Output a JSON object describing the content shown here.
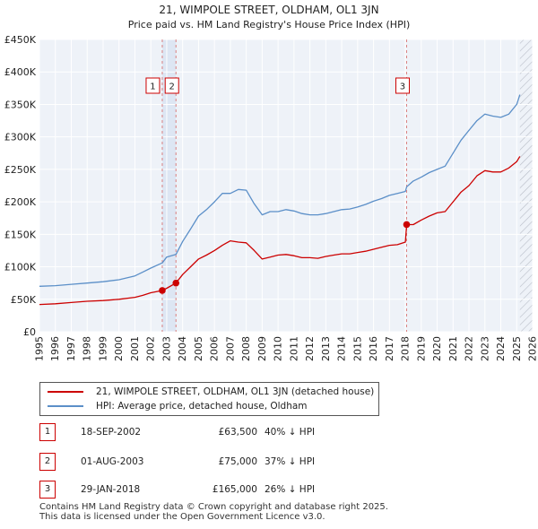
{
  "chart_data": {
    "type": "line",
    "title": "21, WIMPOLE STREET, OLDHAM, OL1 3JN",
    "subtitle": "Price paid vs. HM Land Registry's House Price Index (HPI)",
    "xlim": [
      1995,
      2026
    ],
    "ylim": [
      0,
      450000
    ],
    "x_ticks": [
      1995,
      1996,
      1997,
      1998,
      1999,
      2000,
      2001,
      2002,
      2003,
      2004,
      2005,
      2006,
      2007,
      2008,
      2009,
      2010,
      2011,
      2012,
      2013,
      2014,
      2015,
      2016,
      2017,
      2018,
      2019,
      2020,
      2021,
      2022,
      2023,
      2024,
      2025,
      2026
    ],
    "y_ticks": [
      {
        "value": 0,
        "label": "£0"
      },
      {
        "value": 50000,
        "label": "£50K"
      },
      {
        "value": 100000,
        "label": "£100K"
      },
      {
        "value": 150000,
        "label": "£150K"
      },
      {
        "value": 200000,
        "label": "£200K"
      },
      {
        "value": 250000,
        "label": "£250K"
      },
      {
        "value": 300000,
        "label": "£300K"
      },
      {
        "value": 350000,
        "label": "£350K"
      },
      {
        "value": 400000,
        "label": "£400K"
      },
      {
        "value": 450000,
        "label": "£450K"
      }
    ],
    "grid": true,
    "series": [
      {
        "name": "21, WIMPOLE STREET, OLDHAM, OL1 3JN (detached house)",
        "color": "#cc0000",
        "x": [
          1995,
          1996,
          1997,
          1998,
          1999,
          2000,
          2001,
          2001.5,
          2002,
          2002.72,
          2003,
          2003.58,
          2004,
          2004.5,
          2005,
          2005.5,
          2006,
          2006.5,
          2007,
          2007.5,
          2008,
          2008.5,
          2009,
          2009.5,
          2010,
          2010.5,
          2011,
          2011.5,
          2012,
          2012.5,
          2013,
          2013.5,
          2014,
          2014.5,
          2015,
          2015.5,
          2016,
          2016.5,
          2017,
          2017.5,
          2018.0,
          2018.08,
          2018.5,
          2019,
          2019.5,
          2020,
          2020.5,
          2021,
          2021.5,
          2022,
          2022.5,
          2023,
          2023.5,
          2024,
          2024.5,
          2025,
          2025.2
        ],
        "values": [
          42000,
          43000,
          45000,
          47000,
          48000,
          50000,
          53000,
          56000,
          60000,
          63500,
          67000,
          75000,
          88000,
          100000,
          112000,
          118000,
          125000,
          133000,
          140000,
          138000,
          137000,
          125000,
          112000,
          115000,
          118000,
          119000,
          117000,
          114000,
          114000,
          113000,
          116000,
          118000,
          120000,
          120000,
          122000,
          124000,
          127000,
          130000,
          133000,
          134000,
          138000,
          165000,
          165000,
          172000,
          178000,
          183000,
          185000,
          200000,
          215000,
          225000,
          240000,
          248000,
          246000,
          246000,
          252000,
          262000,
          270000
        ]
      },
      {
        "name": "HPI: Average price, detached house, Oldham",
        "color": "#5b8fc8",
        "x": [
          1995,
          1996,
          1997,
          1998,
          1999,
          2000,
          2001,
          2001.5,
          2002,
          2002.72,
          2003,
          2003.58,
          2004,
          2004.5,
          2005,
          2005.5,
          2006,
          2006.5,
          2007,
          2007.5,
          2008,
          2008.5,
          2009,
          2009.5,
          2010,
          2010.5,
          2011,
          2011.5,
          2012,
          2012.5,
          2013,
          2013.5,
          2014,
          2014.5,
          2015,
          2015.5,
          2016,
          2016.5,
          2017,
          2017.5,
          2018.0,
          2018.08,
          2018.5,
          2019,
          2019.5,
          2020,
          2020.5,
          2021,
          2021.5,
          2022,
          2022.5,
          2023,
          2023.5,
          2024,
          2024.5,
          2025,
          2025.2
        ],
        "values": [
          70000,
          71000,
          73000,
          75000,
          77000,
          80000,
          86000,
          92000,
          98000,
          106000,
          115000,
          119000,
          139000,
          158000,
          178000,
          188000,
          200000,
          213000,
          213000,
          219000,
          218000,
          197000,
          180000,
          185000,
          185000,
          188000,
          186000,
          182000,
          180000,
          180000,
          182000,
          185000,
          188000,
          189000,
          192000,
          196000,
          201000,
          205000,
          210000,
          213000,
          216000,
          223000,
          232000,
          238000,
          245000,
          250000,
          255000,
          275000,
          295000,
          310000,
          325000,
          335000,
          332000,
          330000,
          335000,
          350000,
          365000
        ]
      }
    ],
    "sales": [
      {
        "label": "1",
        "x": 2002.72,
        "value": 63500
      },
      {
        "label": "2",
        "x": 2003.58,
        "value": 75000
      },
      {
        "label": "3",
        "x": 2018.08,
        "value": 165000
      }
    ],
    "hpi_color": "#5b8fc8",
    "price_color": "#cc0000"
  },
  "legend": {
    "items": [
      {
        "label": "21, WIMPOLE STREET, OLDHAM, OL1 3JN (detached house)",
        "color": "#cc0000"
      },
      {
        "label": "HPI: Average price, detached house, Oldham",
        "color": "#5b8fc8"
      }
    ]
  },
  "table": {
    "rows": [
      {
        "num": "1",
        "date": "18-SEP-2002",
        "price": "£63,500",
        "hpi": "40% ↓ HPI"
      },
      {
        "num": "2",
        "date": "01-AUG-2003",
        "price": "£75,000",
        "hpi": "37% ↓ HPI"
      },
      {
        "num": "3",
        "date": "29-JAN-2018",
        "price": "£165,000",
        "hpi": "26% ↓ HPI"
      }
    ]
  },
  "footer": {
    "line1": "Contains HM Land Registry data © Crown copyright and database right 2025.",
    "line2": "This data is licensed under the Open Government Licence v3.0."
  }
}
